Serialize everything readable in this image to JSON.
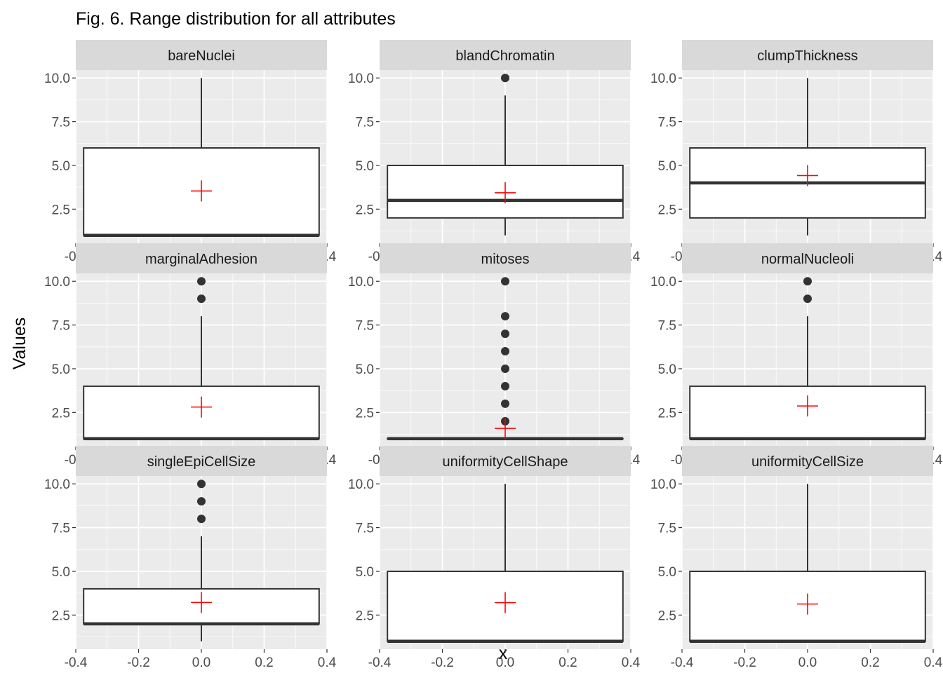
{
  "chart_data": {
    "type": "boxplot",
    "title": "Fig. 6. Range distribution for all attributes",
    "xlabel": "x",
    "ylabel": "Values",
    "xlim": [
      -0.4,
      0.4
    ],
    "ylim": [
      1,
      10
    ],
    "x_ticks": [
      "-0.4",
      "-0.2",
      "0.0",
      "0.2",
      "0.4"
    ],
    "y_ticks": [
      "2.5",
      "5.0",
      "7.5",
      "10.0"
    ],
    "box_x_range": [
      -0.375,
      0.375
    ],
    "mean_marker": "red plus",
    "grid": true,
    "panels": [
      {
        "name": "bareNuclei",
        "q1": 1,
        "median": 1,
        "q3": 6,
        "whisker_low": 1,
        "whisker_high": 10,
        "mean": 3.54,
        "outliers": []
      },
      {
        "name": "blandChromatin",
        "q1": 2,
        "median": 3,
        "q3": 5,
        "whisker_low": 1,
        "whisker_high": 9,
        "mean": 3.44,
        "outliers": [
          10
        ]
      },
      {
        "name": "clumpThickness",
        "q1": 2,
        "median": 4,
        "q3": 6,
        "whisker_low": 1,
        "whisker_high": 10,
        "mean": 4.42,
        "outliers": []
      },
      {
        "name": "marginalAdhesion",
        "q1": 1,
        "median": 1,
        "q3": 4,
        "whisker_low": 1,
        "whisker_high": 8,
        "mean": 2.81,
        "outliers": [
          9,
          10
        ]
      },
      {
        "name": "mitoses",
        "q1": 1,
        "median": 1,
        "q3": 1,
        "whisker_low": 1,
        "whisker_high": 1,
        "mean": 1.59,
        "outliers": [
          2,
          3,
          4,
          5,
          6,
          7,
          8,
          10
        ]
      },
      {
        "name": "normalNucleoli",
        "q1": 1,
        "median": 1,
        "q3": 4,
        "whisker_low": 1,
        "whisker_high": 8,
        "mean": 2.87,
        "outliers": [
          9,
          10
        ]
      },
      {
        "name": "singleEpiCellSize",
        "q1": 2,
        "median": 2,
        "q3": 4,
        "whisker_low": 1,
        "whisker_high": 7,
        "mean": 3.22,
        "outliers": [
          8,
          9,
          10
        ]
      },
      {
        "name": "uniformityCellShape",
        "q1": 1,
        "median": 1,
        "q3": 5,
        "whisker_low": 1,
        "whisker_high": 10,
        "mean": 3.21,
        "outliers": []
      },
      {
        "name": "uniformityCellSize",
        "q1": 1,
        "median": 1,
        "q3": 5,
        "whisker_low": 1,
        "whisker_high": 10,
        "mean": 3.13,
        "outliers": []
      }
    ]
  },
  "colors": {
    "panel_bg": "#ebebeb",
    "strip_bg": "#d9d9d9",
    "grid_major": "#ffffff",
    "box_line": "#333333",
    "box_fill": "#ffffff",
    "mean_marker": "#ff0000",
    "tick_text": "#4d4d4d"
  }
}
